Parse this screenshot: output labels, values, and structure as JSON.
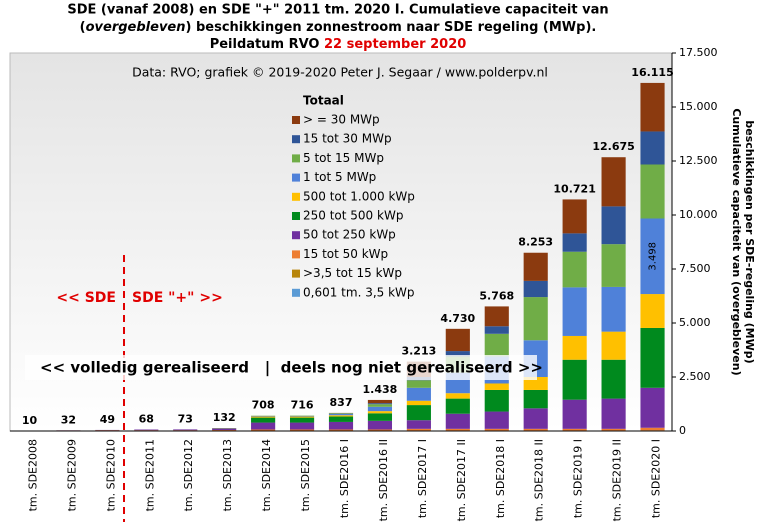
{
  "chart_data": {
    "type": "stacked_bar",
    "title": {
      "line1": "SDE (vanaf 2008) en SDE \"+\" 2011 tm. 2020 I. Cumulatieve capaciteit van",
      "line2_open": "(",
      "line2_italic": "overgebleven",
      "line2_rest": ") beschikkingen zonnestroom naar SDE regeling (MWp).",
      "line3_black": "Peildatum RVO",
      "line3_red": "22 september 2020"
    },
    "source": "Data: RVO;  grafiek © 2019-2020 Peter J. Segaar / www.polderpv.nl",
    "annotations": {
      "sde_left": "<< SDE",
      "sde_right": "SDE \"+\" >>",
      "realised": "<< volledig gerealiseerd   |  deels nog niet gerealiseerd >>"
    },
    "legend_title": "Totaal",
    "y_label": [
      "Cumulatieve capaciteit van (overgebleven)",
      "beschikkingen per SDE-regeling (MWp)"
    ],
    "categories": [
      "tm. SDE2008",
      "tm. SDE2009",
      "tm. SDE2010",
      "tm. SDE2011",
      "tm. SDE2012",
      "tm. SDE2013",
      "tm. SDE2014",
      "tm. SDE2015",
      "tm. SDE2016 I",
      "tm. SDE2016 II",
      "tm. SDE2017 I",
      "tm. SDE2017 II",
      "tm. SDE2018 I",
      "tm. SDE2018 II",
      "tm. SDE2019 I",
      "tm. SDE2019 II",
      "tm. SDE2020 I"
    ],
    "totals": {
      "values": [
        10,
        32,
        49,
        68,
        73,
        132,
        708,
        716,
        837,
        1438,
        3213,
        4730,
        5768,
        8253,
        10721,
        12675,
        16115
      ],
      "value_labels": [
        "10",
        "32",
        "49",
        "68",
        "73",
        "132",
        "708",
        "716",
        "837",
        "1.438",
        "3.213",
        "4.730",
        "5.768",
        "8.253",
        "10.721",
        "12.675",
        "16.115"
      ]
    },
    "series": [
      {
        "name": "0,601 tm. 3,5 kWp",
        "color": "#5b9bd5",
        "values": [
          3,
          5,
          5,
          5,
          5,
          5,
          10,
          10,
          10,
          10,
          15,
          15,
          15,
          15,
          15,
          15,
          20
        ]
      },
      {
        "name": ">3,5 tot 15 kWp",
        "color": "#b8860b",
        "values": [
          1,
          2,
          4,
          8,
          8,
          10,
          10,
          10,
          10,
          10,
          10,
          10,
          10,
          10,
          10,
          10,
          10
        ]
      },
      {
        "name": "15 tot 50 kWp",
        "color": "#ed7d31",
        "values": [
          6,
          20,
          30,
          25,
          25,
          30,
          50,
          50,
          50,
          50,
          75,
          75,
          75,
          75,
          75,
          75,
          120
        ]
      },
      {
        "name": "50 tot 250 kWp",
        "color": "#7030a0",
        "values": [
          0,
          5,
          10,
          30,
          35,
          70,
          320,
          320,
          350,
          400,
          400,
          700,
          800,
          950,
          1350,
          1400,
          1850
        ]
      },
      {
        "name": "250 tot 500 kWp",
        "color": "#008a1e",
        "values": [
          0,
          0,
          0,
          0,
          0,
          12,
          230,
          230,
          250,
          350,
          700,
          700,
          1000,
          850,
          1850,
          1800,
          2770
        ]
      },
      {
        "name": "500 tot 1.000 kWp",
        "color": "#ffc000",
        "values": [
          0,
          0,
          0,
          0,
          0,
          5,
          50,
          50,
          60,
          100,
          200,
          250,
          300,
          600,
          1100,
          1300,
          1570
        ]
      },
      {
        "name": "1 tot 5 MWp",
        "color": "#4f81d9",
        "values": [
          0,
          0,
          0,
          0,
          0,
          0,
          25,
          30,
          60,
          200,
          600,
          950,
          1250,
          1700,
          2250,
          2070,
          3498
        ],
        "value_labels": [
          null,
          null,
          null,
          null,
          null,
          null,
          null,
          null,
          null,
          null,
          null,
          null,
          null,
          null,
          null,
          null,
          "3.498"
        ]
      },
      {
        "name": "5 tot 15 MWp",
        "color": "#70ad47",
        "values": [
          0,
          0,
          0,
          0,
          0,
          0,
          13,
          16,
          27,
          120,
          350,
          750,
          1050,
          2000,
          1650,
          1980,
          2500
        ]
      },
      {
        "name": "15 tot 30 MWp",
        "color": "#2f5597",
        "values": [
          0,
          0,
          0,
          0,
          0,
          0,
          0,
          0,
          10,
          48,
          150,
          250,
          350,
          750,
          850,
          1750,
          1530
        ]
      },
      {
        "name": "> = 30 MWp",
        "color": "#8b3a0f",
        "values": [
          0,
          0,
          0,
          0,
          0,
          0,
          0,
          0,
          10,
          150,
          713,
          1030,
          918,
          1303,
          1571,
          2275,
          2247
        ]
      }
    ],
    "ylim": [
      0,
      17500
    ],
    "yticks": [
      0,
      {
        "value": 2500,
        "label": "2.500"
      },
      {
        "value": 5000,
        "label": "5.000"
      },
      {
        "value": 7500,
        "label": "7.500"
      },
      {
        "value": 10000,
        "label": "10.000"
      },
      {
        "value": 12500,
        "label": "12.500"
      },
      {
        "value": 15000,
        "label": "15.000"
      },
      {
        "value": 17500,
        "label": "17.500"
      }
    ],
    "grid": false
  }
}
